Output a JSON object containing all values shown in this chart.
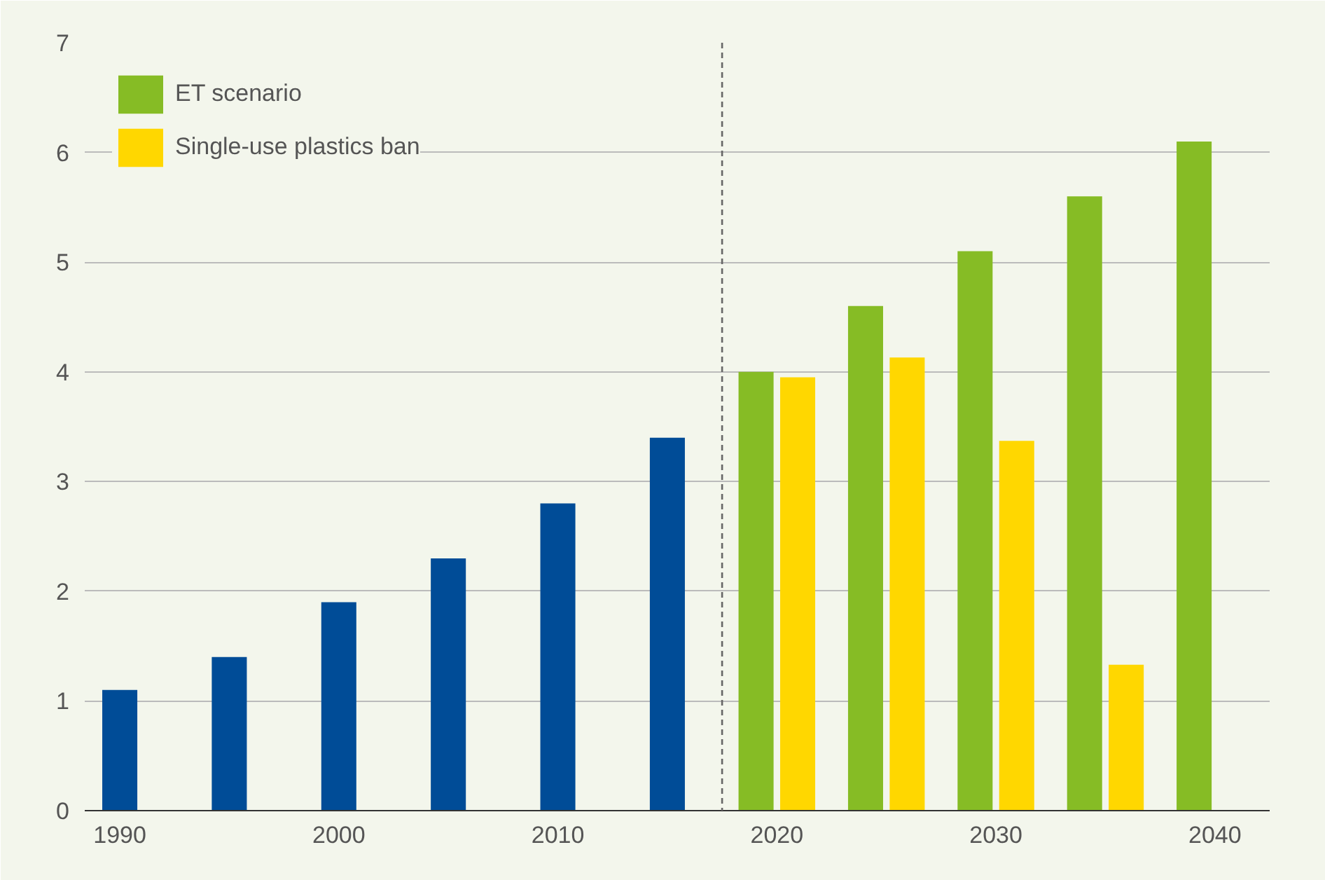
{
  "chart_data": {
    "type": "bar",
    "series": [
      {
        "color": "#004c97",
        "x": [
          1990,
          1995,
          2000,
          2005,
          2010,
          2015
        ],
        "values": [
          1.1,
          1.4,
          1.9,
          2.3,
          2.8,
          3.4
        ]
      },
      {
        "name": "ET scenario",
        "color": "#86bc25",
        "x": [
          2020,
          2025,
          2030,
          2035,
          2040
        ],
        "values": [
          4.0,
          4.6,
          5.1,
          5.6,
          6.1
        ]
      },
      {
        "name": "Single-use plastics ban",
        "color": "#ffd700",
        "x": [
          2020,
          2025,
          2030,
          2035
        ],
        "values": [
          3.95,
          4.13,
          3.37,
          1.33
        ]
      }
    ],
    "xlim": [
      1988.4,
      2042.5
    ],
    "xticks": [
      1990,
      2000,
      2010,
      2020,
      2030,
      2040
    ],
    "ylim": [
      0,
      7
    ],
    "yticks": [
      0,
      1,
      2,
      3,
      4,
      5,
      6,
      7
    ],
    "ref_lines": [
      {
        "axis": "x",
        "value": 2017.5,
        "color": "#666666",
        "line_style": "dashed"
      }
    ],
    "grid": "y",
    "legend": "top left"
  }
}
